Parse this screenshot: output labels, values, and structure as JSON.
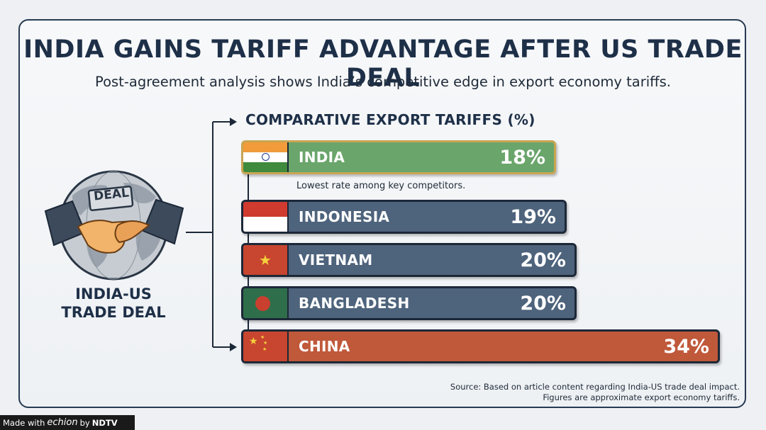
{
  "header": {
    "title": "INDIA GAINS TARIFF ADVANTAGE AFTER US TRADE DEAL",
    "subtitle": "Post-agreement analysis shows India’s competitive edge in export economy tariffs."
  },
  "left_panel": {
    "badge_text": "DEAL",
    "title_line1": "INDIA-US",
    "title_line2": "TRADE DEAL",
    "icon": "handshake-globe-icon"
  },
  "chart_data": {
    "type": "bar",
    "orientation": "horizontal",
    "title": "COMPARATIVE EXPORT TARIFFS (%)",
    "unit": "%",
    "categories": [
      "INDIA",
      "INDONESIA",
      "VIETNAM",
      "BANGLADESH",
      "CHINA"
    ],
    "values": [
      18,
      19,
      20,
      20,
      34
    ],
    "value_labels": [
      "18%",
      "19%",
      "20%",
      "20%",
      "34%"
    ],
    "bar_colors": [
      "#6aa56b",
      "#4e637c",
      "#4e637c",
      "#4e637c",
      "#c0583a"
    ],
    "highlight": "INDIA",
    "annotation": "Lowest rate among key competitors."
  },
  "source": {
    "line1": "Source: Based on article content regarding India-US trade deal impact.",
    "line2": "Figures are approximate export economy tariffs."
  },
  "footer": {
    "made_with": "Made with",
    "brand": "echion",
    "by": "by",
    "publisher": "NDTV"
  }
}
